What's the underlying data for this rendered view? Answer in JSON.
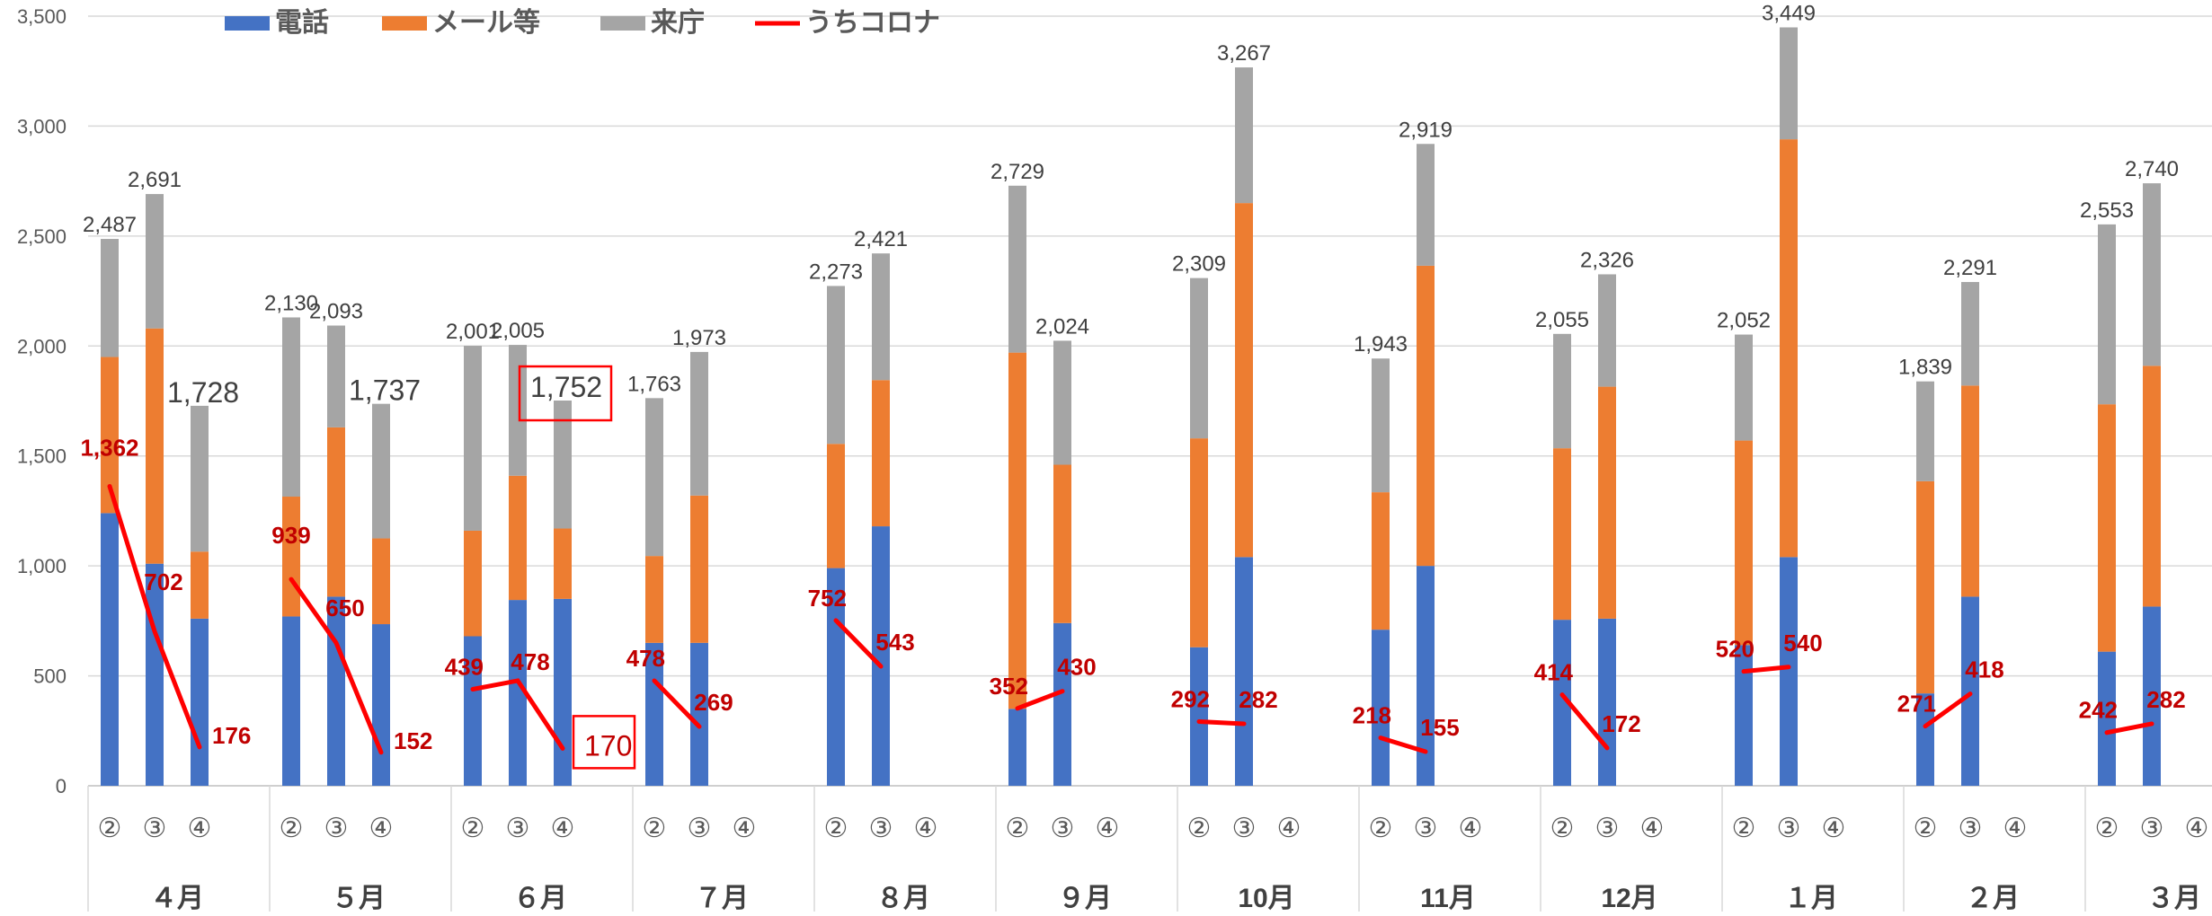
{
  "chart_data": {
    "type": "bar",
    "stacked": true,
    "ylim": [
      0,
      3500
    ],
    "yticks": [
      "0",
      "500",
      "1,000",
      "1,500",
      "2,000",
      "2,500",
      "3,000",
      "3,500"
    ],
    "grid": true,
    "legend_position": "top",
    "legend": [
      {
        "name": "電話",
        "color": "#4472c4",
        "kind": "box"
      },
      {
        "name": "メール等",
        "color": "#ed7d31",
        "kind": "box"
      },
      {
        "name": "来庁",
        "color": "#a5a5a5",
        "kind": "box"
      },
      {
        "name": "うちコロナ",
        "color": "#ff0000",
        "kind": "line"
      }
    ],
    "period_labels": [
      "②",
      "③",
      "④"
    ],
    "months": [
      {
        "label": "４月",
        "bars": [
          {
            "phone": 1240,
            "mail": 710,
            "visit": 537,
            "total": "2,487",
            "corona": 1362,
            "corona_label": "1,362"
          },
          {
            "phone": 1010,
            "mail": 1070,
            "visit": 611,
            "total": "2,691",
            "corona": 702,
            "corona_label": "702"
          },
          {
            "phone": 760,
            "mail": 305,
            "visit": 663,
            "total": "1,728",
            "corona": 176,
            "corona_label": "176"
          }
        ]
      },
      {
        "label": "５月",
        "bars": [
          {
            "phone": 770,
            "mail": 545,
            "visit": 815,
            "total": "2,130",
            "corona": 939,
            "corona_label": "939"
          },
          {
            "phone": 860,
            "mail": 770,
            "visit": 463,
            "total": "2,093",
            "corona": 650,
            "corona_label": "650"
          },
          {
            "phone": 735,
            "mail": 390,
            "visit": 612,
            "total": "1,737",
            "corona": 152,
            "corona_label": "152"
          }
        ]
      },
      {
        "label": "６月",
        "bars": [
          {
            "phone": 680,
            "mail": 480,
            "visit": 841,
            "total": "2,001",
            "corona": 439,
            "corona_label": "439"
          },
          {
            "phone": 845,
            "mail": 565,
            "visit": 595,
            "total": "2,005",
            "corona": 478,
            "corona_label": "478"
          },
          {
            "phone": 850,
            "mail": 320,
            "visit": 582,
            "total": "1,752",
            "corona": 170,
            "corona_label": "170"
          }
        ]
      },
      {
        "label": "７月",
        "bars": [
          {
            "phone": 650,
            "mail": 395,
            "visit": 718,
            "total": "1,763",
            "corona": 478,
            "corona_label": "478"
          },
          {
            "phone": 650,
            "mail": 670,
            "visit": 653,
            "total": "1,973",
            "corona": 269,
            "corona_label": "269"
          },
          null
        ]
      },
      {
        "label": "８月",
        "bars": [
          {
            "phone": 990,
            "mail": 565,
            "visit": 718,
            "total": "2,273",
            "corona": 752,
            "corona_label": "752"
          },
          {
            "phone": 1180,
            "mail": 665,
            "visit": 576,
            "total": "2,421",
            "corona": 543,
            "corona_label": "543"
          },
          null
        ]
      },
      {
        "label": "９月",
        "bars": [
          {
            "phone": 350,
            "mail": 1620,
            "visit": 759,
            "total": "2,729",
            "corona": 352,
            "corona_label": "352"
          },
          {
            "phone": 740,
            "mail": 720,
            "visit": 564,
            "total": "2,024",
            "corona": 430,
            "corona_label": "430"
          },
          null
        ]
      },
      {
        "label": "10月",
        "bars": [
          {
            "phone": 630,
            "mail": 950,
            "visit": 729,
            "total": "2,309",
            "corona": 292,
            "corona_label": "292"
          },
          {
            "phone": 1040,
            "mail": 1610,
            "visit": 617,
            "total": "3,267",
            "corona": 282,
            "corona_label": "282"
          },
          null
        ]
      },
      {
        "label": "11月",
        "bars": [
          {
            "phone": 710,
            "mail": 625,
            "visit": 608,
            "total": "1,943",
            "corona": 218,
            "corona_label": "218"
          },
          {
            "phone": 1000,
            "mail": 1365,
            "visit": 554,
            "total": "2,919",
            "corona": 155,
            "corona_label": "155"
          },
          null
        ]
      },
      {
        "label": "12月",
        "bars": [
          {
            "phone": 755,
            "mail": 780,
            "visit": 520,
            "total": "2,055",
            "corona": 414,
            "corona_label": "414"
          },
          {
            "phone": 760,
            "mail": 1055,
            "visit": 511,
            "total": "2,326",
            "corona": 172,
            "corona_label": "172"
          },
          null
        ]
      },
      {
        "label": "１月",
        "bars": [
          {
            "phone": 640,
            "mail": 930,
            "visit": 482,
            "total": "2,052",
            "corona": 520,
            "corona_label": "520"
          },
          {
            "phone": 1040,
            "mail": 1900,
            "visit": 509,
            "total": "3,449",
            "corona": 540,
            "corona_label": "540"
          },
          null
        ]
      },
      {
        "label": "２月",
        "bars": [
          {
            "phone": 420,
            "mail": 965,
            "visit": 454,
            "total": "1,839",
            "corona": 271,
            "corona_label": "271"
          },
          {
            "phone": 860,
            "mail": 960,
            "visit": 471,
            "total": "2,291",
            "corona": 418,
            "corona_label": "418"
          },
          null
        ]
      },
      {
        "label": "３月",
        "bars": [
          {
            "phone": 610,
            "mail": 1125,
            "visit": 818,
            "total": "2,553",
            "corona": 242,
            "corona_label": "242"
          },
          {
            "phone": 815,
            "mail": 1095,
            "visit": 830,
            "total": "2,740",
            "corona": 282,
            "corona_label": "282"
          },
          null
        ]
      }
    ],
    "highlighted_labels": [
      "1,752",
      "170"
    ],
    "colors": {
      "phone": "#4472c4",
      "mail": "#ed7d31",
      "visit": "#a5a5a5",
      "corona": "#ff0000",
      "corona_text": "#c00000",
      "grid": "#d9d9d9"
    }
  }
}
